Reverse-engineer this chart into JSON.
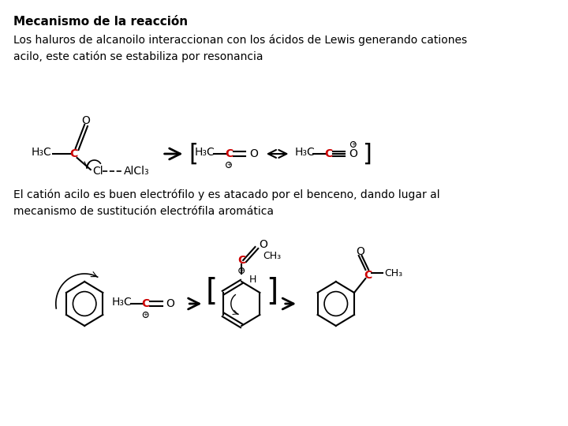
{
  "title": "Mecanismo de la reacción",
  "paragraph1": "Los haluros de alcanoilo interaccionan con los ácidos de Lewis generando cationes\nacilo, este catión se estabiliza por resonancia",
  "paragraph2": "El catión acilo es buen electrófilo y es atacado por el benceno, dando lugar al\nmecanismo de sustitución electrófila aromática",
  "bg_color": "#ffffff",
  "text_color": "#000000",
  "red_color": "#cc0000",
  "title_fontsize": 11,
  "body_fontsize": 10
}
